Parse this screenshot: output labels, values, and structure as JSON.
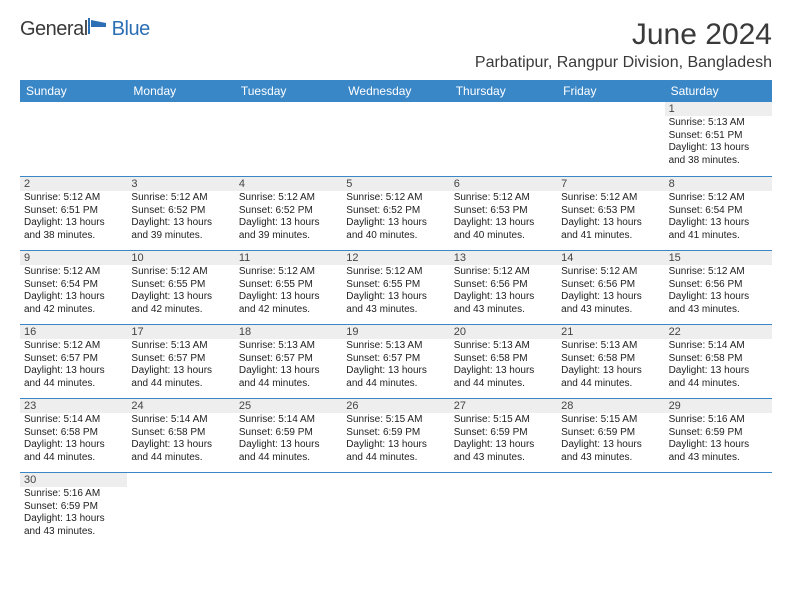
{
  "brand": {
    "general": "General",
    "blue": "Blue"
  },
  "title": "June 2024",
  "location": "Parbatipur, Rangpur Division, Bangladesh",
  "colors": {
    "header_bg": "#3a87c8",
    "header_text": "#ffffff",
    "daynum_bg": "#eeeeee",
    "border": "#3a87c8",
    "text": "#222222",
    "title_text": "#3a3a3a",
    "logo_blue": "#2d6fb5"
  },
  "typography": {
    "title_fontsize": 30,
    "location_fontsize": 16,
    "dayheader_fontsize": 12,
    "daynum_fontsize": 11,
    "body_fontsize": 10
  },
  "layout": {
    "columns": 7,
    "rows": 6
  },
  "day_headers": [
    "Sunday",
    "Monday",
    "Tuesday",
    "Wednesday",
    "Thursday",
    "Friday",
    "Saturday"
  ],
  "weeks": [
    [
      null,
      null,
      null,
      null,
      null,
      null,
      {
        "n": "1",
        "sr": "Sunrise: 5:13 AM",
        "ss": "Sunset: 6:51 PM",
        "d1": "Daylight: 13 hours",
        "d2": "and 38 minutes."
      }
    ],
    [
      {
        "n": "2",
        "sr": "Sunrise: 5:12 AM",
        "ss": "Sunset: 6:51 PM",
        "d1": "Daylight: 13 hours",
        "d2": "and 38 minutes."
      },
      {
        "n": "3",
        "sr": "Sunrise: 5:12 AM",
        "ss": "Sunset: 6:52 PM",
        "d1": "Daylight: 13 hours",
        "d2": "and 39 minutes."
      },
      {
        "n": "4",
        "sr": "Sunrise: 5:12 AM",
        "ss": "Sunset: 6:52 PM",
        "d1": "Daylight: 13 hours",
        "d2": "and 39 minutes."
      },
      {
        "n": "5",
        "sr": "Sunrise: 5:12 AM",
        "ss": "Sunset: 6:52 PM",
        "d1": "Daylight: 13 hours",
        "d2": "and 40 minutes."
      },
      {
        "n": "6",
        "sr": "Sunrise: 5:12 AM",
        "ss": "Sunset: 6:53 PM",
        "d1": "Daylight: 13 hours",
        "d2": "and 40 minutes."
      },
      {
        "n": "7",
        "sr": "Sunrise: 5:12 AM",
        "ss": "Sunset: 6:53 PM",
        "d1": "Daylight: 13 hours",
        "d2": "and 41 minutes."
      },
      {
        "n": "8",
        "sr": "Sunrise: 5:12 AM",
        "ss": "Sunset: 6:54 PM",
        "d1": "Daylight: 13 hours",
        "d2": "and 41 minutes."
      }
    ],
    [
      {
        "n": "9",
        "sr": "Sunrise: 5:12 AM",
        "ss": "Sunset: 6:54 PM",
        "d1": "Daylight: 13 hours",
        "d2": "and 42 minutes."
      },
      {
        "n": "10",
        "sr": "Sunrise: 5:12 AM",
        "ss": "Sunset: 6:55 PM",
        "d1": "Daylight: 13 hours",
        "d2": "and 42 minutes."
      },
      {
        "n": "11",
        "sr": "Sunrise: 5:12 AM",
        "ss": "Sunset: 6:55 PM",
        "d1": "Daylight: 13 hours",
        "d2": "and 42 minutes."
      },
      {
        "n": "12",
        "sr": "Sunrise: 5:12 AM",
        "ss": "Sunset: 6:55 PM",
        "d1": "Daylight: 13 hours",
        "d2": "and 43 minutes."
      },
      {
        "n": "13",
        "sr": "Sunrise: 5:12 AM",
        "ss": "Sunset: 6:56 PM",
        "d1": "Daylight: 13 hours",
        "d2": "and 43 minutes."
      },
      {
        "n": "14",
        "sr": "Sunrise: 5:12 AM",
        "ss": "Sunset: 6:56 PM",
        "d1": "Daylight: 13 hours",
        "d2": "and 43 minutes."
      },
      {
        "n": "15",
        "sr": "Sunrise: 5:12 AM",
        "ss": "Sunset: 6:56 PM",
        "d1": "Daylight: 13 hours",
        "d2": "and 43 minutes."
      }
    ],
    [
      {
        "n": "16",
        "sr": "Sunrise: 5:12 AM",
        "ss": "Sunset: 6:57 PM",
        "d1": "Daylight: 13 hours",
        "d2": "and 44 minutes."
      },
      {
        "n": "17",
        "sr": "Sunrise: 5:13 AM",
        "ss": "Sunset: 6:57 PM",
        "d1": "Daylight: 13 hours",
        "d2": "and 44 minutes."
      },
      {
        "n": "18",
        "sr": "Sunrise: 5:13 AM",
        "ss": "Sunset: 6:57 PM",
        "d1": "Daylight: 13 hours",
        "d2": "and 44 minutes."
      },
      {
        "n": "19",
        "sr": "Sunrise: 5:13 AM",
        "ss": "Sunset: 6:57 PM",
        "d1": "Daylight: 13 hours",
        "d2": "and 44 minutes."
      },
      {
        "n": "20",
        "sr": "Sunrise: 5:13 AM",
        "ss": "Sunset: 6:58 PM",
        "d1": "Daylight: 13 hours",
        "d2": "and 44 minutes."
      },
      {
        "n": "21",
        "sr": "Sunrise: 5:13 AM",
        "ss": "Sunset: 6:58 PM",
        "d1": "Daylight: 13 hours",
        "d2": "and 44 minutes."
      },
      {
        "n": "22",
        "sr": "Sunrise: 5:14 AM",
        "ss": "Sunset: 6:58 PM",
        "d1": "Daylight: 13 hours",
        "d2": "and 44 minutes."
      }
    ],
    [
      {
        "n": "23",
        "sr": "Sunrise: 5:14 AM",
        "ss": "Sunset: 6:58 PM",
        "d1": "Daylight: 13 hours",
        "d2": "and 44 minutes."
      },
      {
        "n": "24",
        "sr": "Sunrise: 5:14 AM",
        "ss": "Sunset: 6:58 PM",
        "d1": "Daylight: 13 hours",
        "d2": "and 44 minutes."
      },
      {
        "n": "25",
        "sr": "Sunrise: 5:14 AM",
        "ss": "Sunset: 6:59 PM",
        "d1": "Daylight: 13 hours",
        "d2": "and 44 minutes."
      },
      {
        "n": "26",
        "sr": "Sunrise: 5:15 AM",
        "ss": "Sunset: 6:59 PM",
        "d1": "Daylight: 13 hours",
        "d2": "and 44 minutes."
      },
      {
        "n": "27",
        "sr": "Sunrise: 5:15 AM",
        "ss": "Sunset: 6:59 PM",
        "d1": "Daylight: 13 hours",
        "d2": "and 43 minutes."
      },
      {
        "n": "28",
        "sr": "Sunrise: 5:15 AM",
        "ss": "Sunset: 6:59 PM",
        "d1": "Daylight: 13 hours",
        "d2": "and 43 minutes."
      },
      {
        "n": "29",
        "sr": "Sunrise: 5:16 AM",
        "ss": "Sunset: 6:59 PM",
        "d1": "Daylight: 13 hours",
        "d2": "and 43 minutes."
      }
    ],
    [
      {
        "n": "30",
        "sr": "Sunrise: 5:16 AM",
        "ss": "Sunset: 6:59 PM",
        "d1": "Daylight: 13 hours",
        "d2": "and 43 minutes."
      },
      null,
      null,
      null,
      null,
      null,
      null
    ]
  ]
}
